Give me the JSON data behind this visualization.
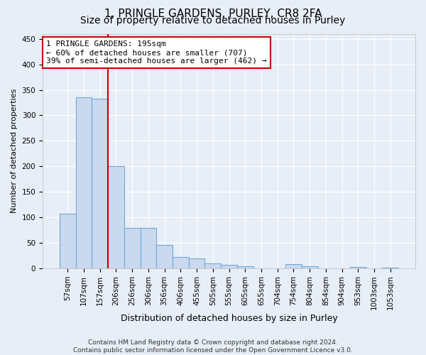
{
  "title1": "1, PRINGLE GARDENS, PURLEY, CR8 2FA",
  "title2": "Size of property relative to detached houses in Purley",
  "xlabel": "Distribution of detached houses by size in Purley",
  "ylabel": "Number of detached properties",
  "bar_values": [
    107,
    335,
    332,
    201,
    80,
    80,
    46,
    23,
    20,
    10,
    7,
    5,
    0,
    0,
    8,
    5,
    0,
    0,
    3,
    0,
    2
  ],
  "x_labels": [
    "57sqm",
    "107sqm",
    "157sqm",
    "206sqm",
    "256sqm",
    "306sqm",
    "356sqm",
    "406sqm",
    "455sqm",
    "505sqm",
    "555sqm",
    "605sqm",
    "655sqm",
    "704sqm",
    "754sqm",
    "804sqm",
    "854sqm",
    "904sqm",
    "953sqm",
    "1003sqm",
    "1053sqm"
  ],
  "bar_color": "#cad9ee",
  "bar_edge_color": "#6fa8dc",
  "vline_x": 2.5,
  "vline_color": "#cc0000",
  "annotation_text": "1 PRINGLE GARDENS: 195sqm\n← 60% of detached houses are smaller (707)\n39% of semi-detached houses are larger (462) →",
  "annotation_box_color": "#ffffff",
  "annotation_box_edge": "#cc0000",
  "ylim": [
    0,
    460
  ],
  "yticks": [
    0,
    50,
    100,
    150,
    200,
    250,
    300,
    350,
    400,
    450
  ],
  "title1_fontsize": 11,
  "title2_fontsize": 10,
  "xlabel_fontsize": 9,
  "ylabel_fontsize": 8,
  "tick_fontsize": 7.5,
  "annotation_fontsize": 8,
  "footnote_fontsize": 6.5,
  "footnote": "Contains HM Land Registry data © Crown copyright and database right 2024.\nContains public sector information licensed under the Open Government Licence v3.0.",
  "background_color": "#e8eef7",
  "grid_color": "#ffffff"
}
